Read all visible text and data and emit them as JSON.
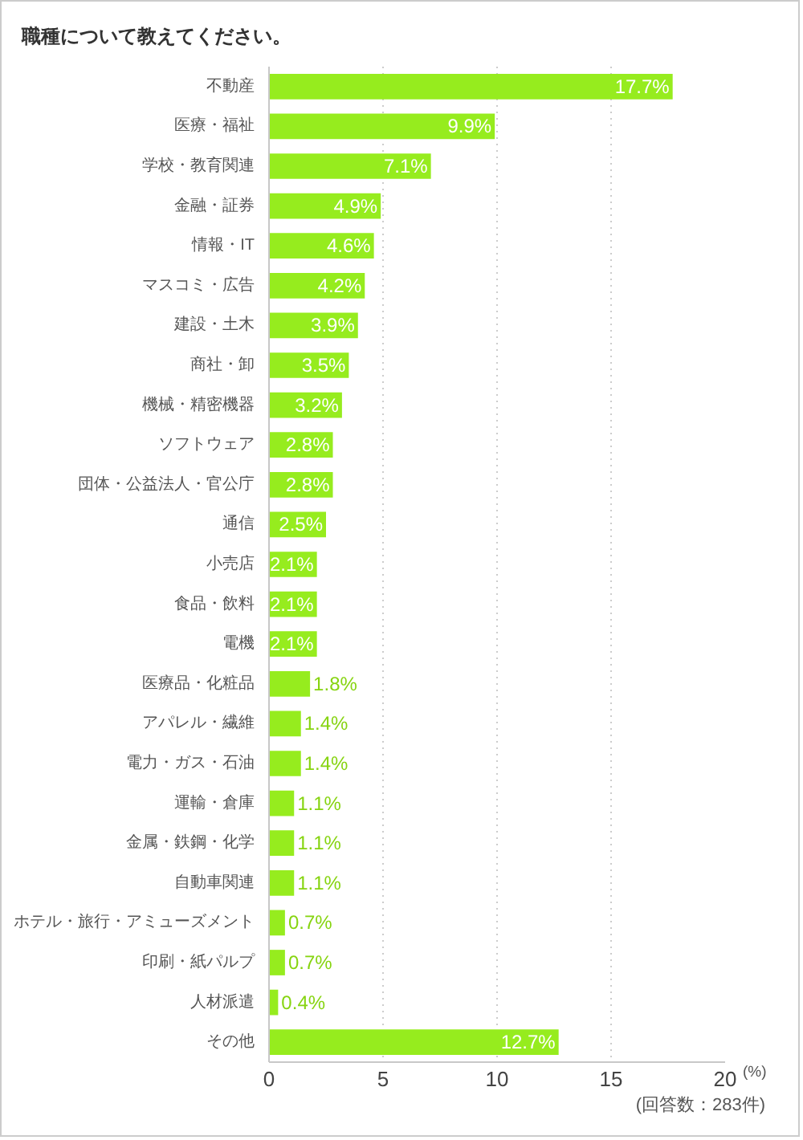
{
  "chart_data": {
    "type": "bar",
    "orientation": "horizontal",
    "title": "職種について教えてください。",
    "xlabel": "(%)",
    "annotations": [
      "(回答数：283件)"
    ],
    "categories": [
      "不動産",
      "医療・福祉",
      "学校・教育関連",
      "金融・証券",
      "情報・IT",
      "マスコミ・広告",
      "建設・土木",
      "商社・卸",
      "機械・精密機器",
      "ソフトウェア",
      "団体・公益法人・官公庁",
      "通信",
      "小売店",
      "食品・飲料",
      "電機",
      "医療品・化粧品",
      "アパレル・繊維",
      "電力・ガス・石油",
      "運輸・倉庫",
      "金属・鉄鋼・化学",
      "自動車関連",
      "ホテル・旅行・アミューズメント",
      "印刷・紙パルプ",
      "人材派遣",
      "その他"
    ],
    "values": [
      17.7,
      9.9,
      7.1,
      4.9,
      4.6,
      4.2,
      3.9,
      3.5,
      3.2,
      2.8,
      2.8,
      2.5,
      2.1,
      2.1,
      2.1,
      1.8,
      1.4,
      1.4,
      1.1,
      1.1,
      1.1,
      0.7,
      0.7,
      0.4,
      12.7
    ],
    "value_labels": [
      "17.7%",
      "9.9%",
      "7.1%",
      "4.9%",
      "4.6%",
      "4.2%",
      "3.9%",
      "3.5%",
      "3.2%",
      "2.8%",
      "2.8%",
      "2.5%",
      "2.1%",
      "2.1%",
      "2.1%",
      "1.8%",
      "1.4%",
      "1.4%",
      "1.1%",
      "1.1%",
      "1.1%",
      "0.7%",
      "0.7%",
      "0.4%",
      "12.7%"
    ],
    "color": "#96ec1e",
    "xlim": [
      0,
      20
    ],
    "xticks": [
      0,
      5,
      10,
      15,
      20
    ],
    "grid": "x"
  }
}
